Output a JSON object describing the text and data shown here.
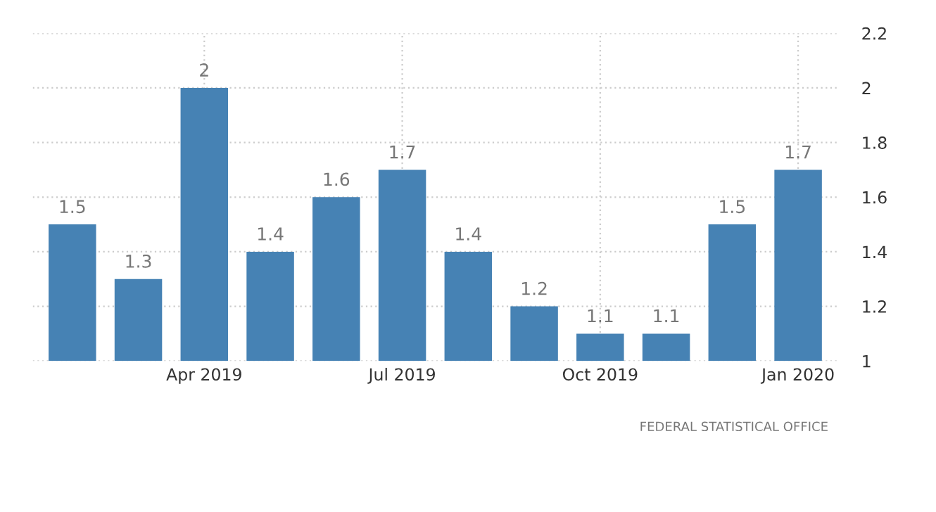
{
  "chart_data": {
    "type": "bar",
    "categories": [
      null,
      null,
      "Apr 2019",
      null,
      null,
      "Jul 2019",
      null,
      null,
      "Oct 2019",
      null,
      null,
      "Jan 2020"
    ],
    "values": [
      1.5,
      1.3,
      2,
      1.4,
      1.6,
      1.7,
      1.4,
      1.2,
      1.1,
      1.1,
      1.5,
      1.7
    ],
    "color": "#4682b4",
    "ylim": [
      1,
      2.2
    ],
    "yticks": [
      1,
      1.2,
      1.4,
      1.6,
      1.8,
      2,
      2.2
    ],
    "data_labels": true,
    "grid": true,
    "legend": false,
    "annotations": [
      "FEDERAL STATISTICAL OFFICE"
    ]
  }
}
